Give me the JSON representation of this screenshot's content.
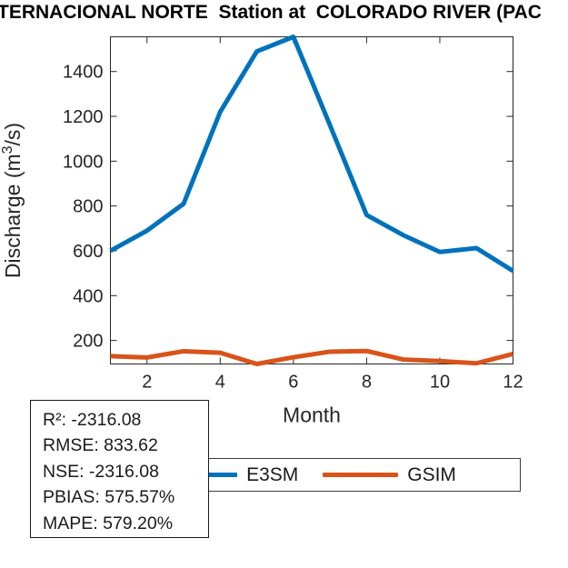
{
  "chart_data": {
    "type": "line",
    "title": "TERNACIONAL NORTE  Station at  COLORADO RIVER (PAC",
    "xlabel": "Month",
    "ylabel": "Discharge (m³/s)",
    "ylabel_parts": {
      "prefix": "Discharge (m",
      "sup": "3",
      "suffix": "/s)"
    },
    "x": [
      1,
      2,
      3,
      4,
      5,
      6,
      7,
      8,
      9,
      10,
      11,
      12
    ],
    "series": [
      {
        "name": "E3SM",
        "color": "#0072BD",
        "values": [
          600,
          690,
          810,
          1220,
          1490,
          1555,
          1160,
          760,
          670,
          595,
          612,
          510
        ]
      },
      {
        "name": "GSIM",
        "color": "#D95319",
        "values": [
          130,
          124,
          152,
          145,
          95,
          125,
          150,
          153,
          115,
          108,
          98,
          140
        ]
      }
    ],
    "xlim": [
      1,
      12
    ],
    "ylim": [
      95,
      1555
    ],
    "xticks": [
      2,
      4,
      6,
      8,
      10,
      12
    ],
    "yticks": [
      200,
      400,
      600,
      800,
      1000,
      1200,
      1400
    ],
    "grid": false,
    "box": true,
    "legend_position": "below",
    "axis_color": "#262626"
  },
  "stats_box": {
    "lines": [
      "R²: -2316.08",
      "RMSE: 833.62",
      "NSE: -2316.08",
      "PBIAS: 575.57%",
      "MAPE: 579.20%"
    ]
  }
}
